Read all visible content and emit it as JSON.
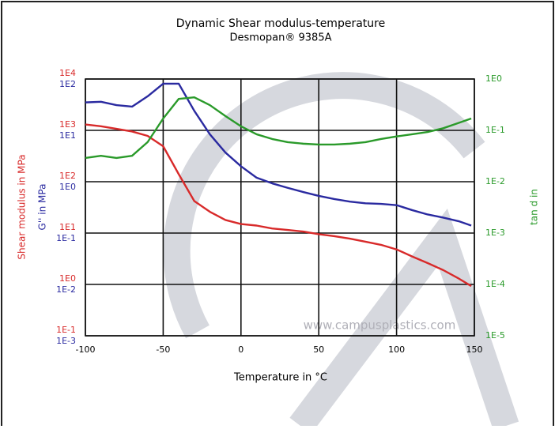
{
  "chart_data": {
    "type": "line",
    "title": "Dynamic Shear modulus-temperature",
    "subtitle": "Desmopan® 9385A",
    "x_label": "Temperature in °C",
    "y_label": "Shear modulus in MPa",
    "y2_label": "G'' in MPa",
    "y3_label": "tan d in",
    "watermark": "www.campusplastics.com",
    "log_scale": true,
    "grid": true,
    "x": [
      -100,
      -90,
      -80,
      -70,
      -60,
      -50,
      -40,
      -30,
      -20,
      -10,
      0,
      10,
      20,
      30,
      40,
      50,
      60,
      70,
      80,
      90,
      100,
      110,
      120,
      130,
      140,
      148
    ],
    "xlim": [
      -100,
      150
    ],
    "xticks": [
      -100,
      -50,
      0,
      50,
      100,
      150
    ],
    "ylim": [
      0.1,
      10000
    ],
    "yticks": [
      {
        "value": 0.1,
        "label": "1E-1"
      },
      {
        "value": 1,
        "label": "1E0"
      },
      {
        "value": 10,
        "label": "1E1"
      },
      {
        "value": 100,
        "label": "1E2"
      },
      {
        "value": 1000,
        "label": "1E3"
      },
      {
        "value": 10000,
        "label": "1E4"
      }
    ],
    "y2lim": [
      0.001,
      100
    ],
    "y2ticks": [
      {
        "value": 0.001,
        "label": "1E-3"
      },
      {
        "value": 0.01,
        "label": "1E-2"
      },
      {
        "value": 0.1,
        "label": "1E-1"
      },
      {
        "value": 1,
        "label": "1E0"
      },
      {
        "value": 10,
        "label": "1E1"
      },
      {
        "value": 100,
        "label": "1E2"
      }
    ],
    "y3lim": [
      1e-05,
      1
    ],
    "y3ticks": [
      {
        "value": 1e-05,
        "label": "1E-5"
      },
      {
        "value": 0.0001,
        "label": "1E-4"
      },
      {
        "value": 0.001,
        "label": "1E-3"
      },
      {
        "value": 0.01,
        "label": "1E-2"
      },
      {
        "value": 0.1,
        "label": "1E-1"
      },
      {
        "value": 1,
        "label": "1E0"
      }
    ],
    "series": [
      {
        "name": "Shear modulus",
        "color": "#d82a2a",
        "axis": "y",
        "values": [
          1300,
          1200,
          1070,
          950,
          780,
          490,
          140,
          42,
          26,
          18,
          15,
          14,
          12.3,
          11.5,
          10.7,
          9.5,
          8.7,
          7.8,
          6.8,
          5.9,
          4.8,
          3.5,
          2.6,
          1.9,
          1.3,
          0.93
        ]
      },
      {
        "name": "G''",
        "color": "#2a2aa0",
        "axis": "y2",
        "values": [
          35,
          36,
          31,
          29,
          46,
          81,
          81,
          24,
          8.4,
          3.7,
          2.0,
          1.2,
          0.93,
          0.76,
          0.63,
          0.53,
          0.46,
          0.41,
          0.38,
          0.37,
          0.35,
          0.28,
          0.23,
          0.2,
          0.17,
          0.14
        ]
      },
      {
        "name": "tan d",
        "color": "#2a9a2a",
        "axis": "y3",
        "values": [
          0.029,
          0.032,
          0.029,
          0.032,
          0.059,
          0.17,
          0.41,
          0.44,
          0.31,
          0.19,
          0.12,
          0.084,
          0.068,
          0.059,
          0.055,
          0.053,
          0.053,
          0.055,
          0.059,
          0.068,
          0.076,
          0.084,
          0.093,
          0.11,
          0.14,
          0.17
        ]
      }
    ]
  }
}
